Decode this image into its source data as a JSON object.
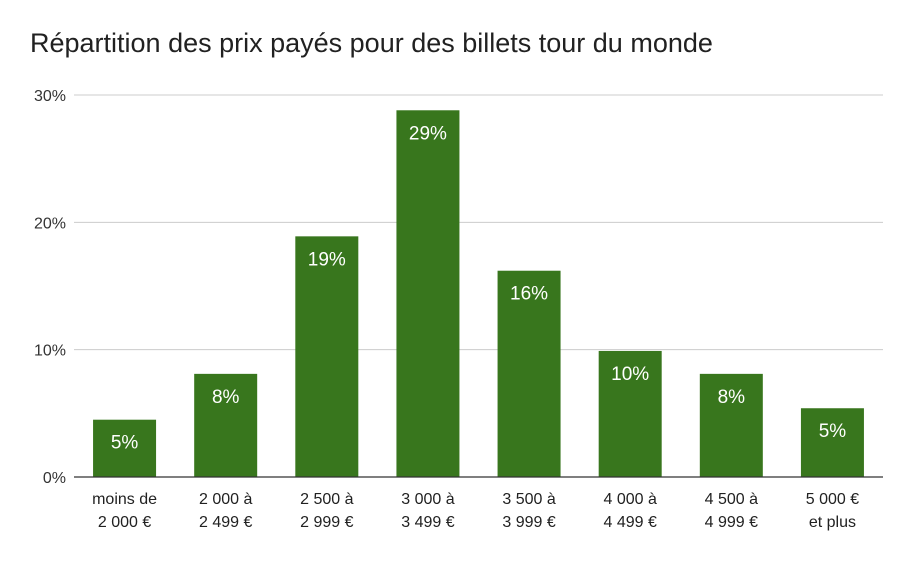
{
  "chart_data": {
    "type": "bar",
    "title": "Répartition des prix payés pour des billets tour du monde",
    "categories": [
      [
        "moins de",
        "2 000 €"
      ],
      [
        "2 000 à",
        "2 499 €"
      ],
      [
        "2 500 à",
        "2 999 €"
      ],
      [
        "3 000 à",
        "3 499 €"
      ],
      [
        "3 500 à",
        "3 999 €"
      ],
      [
        "4 000 à",
        "4 499 €"
      ],
      [
        "4 500 à",
        "4 999 €"
      ],
      [
        "5 000 €",
        "et plus"
      ]
    ],
    "values": [
      4.5,
      8.1,
      18.9,
      28.8,
      16.2,
      9.9,
      8.1,
      5.4
    ],
    "data_labels": [
      "5%",
      "8%",
      "19%",
      "29%",
      "16%",
      "10%",
      "8%",
      "5%"
    ],
    "yticks": [
      "0%",
      "10%",
      "20%",
      "30%"
    ],
    "ytick_values": [
      0,
      10,
      20,
      30
    ],
    "ylim": [
      0,
      30
    ],
    "grid": true,
    "bar_color": "#38761d",
    "grid_color": "#cccccc",
    "axis_color": "#333333"
  }
}
